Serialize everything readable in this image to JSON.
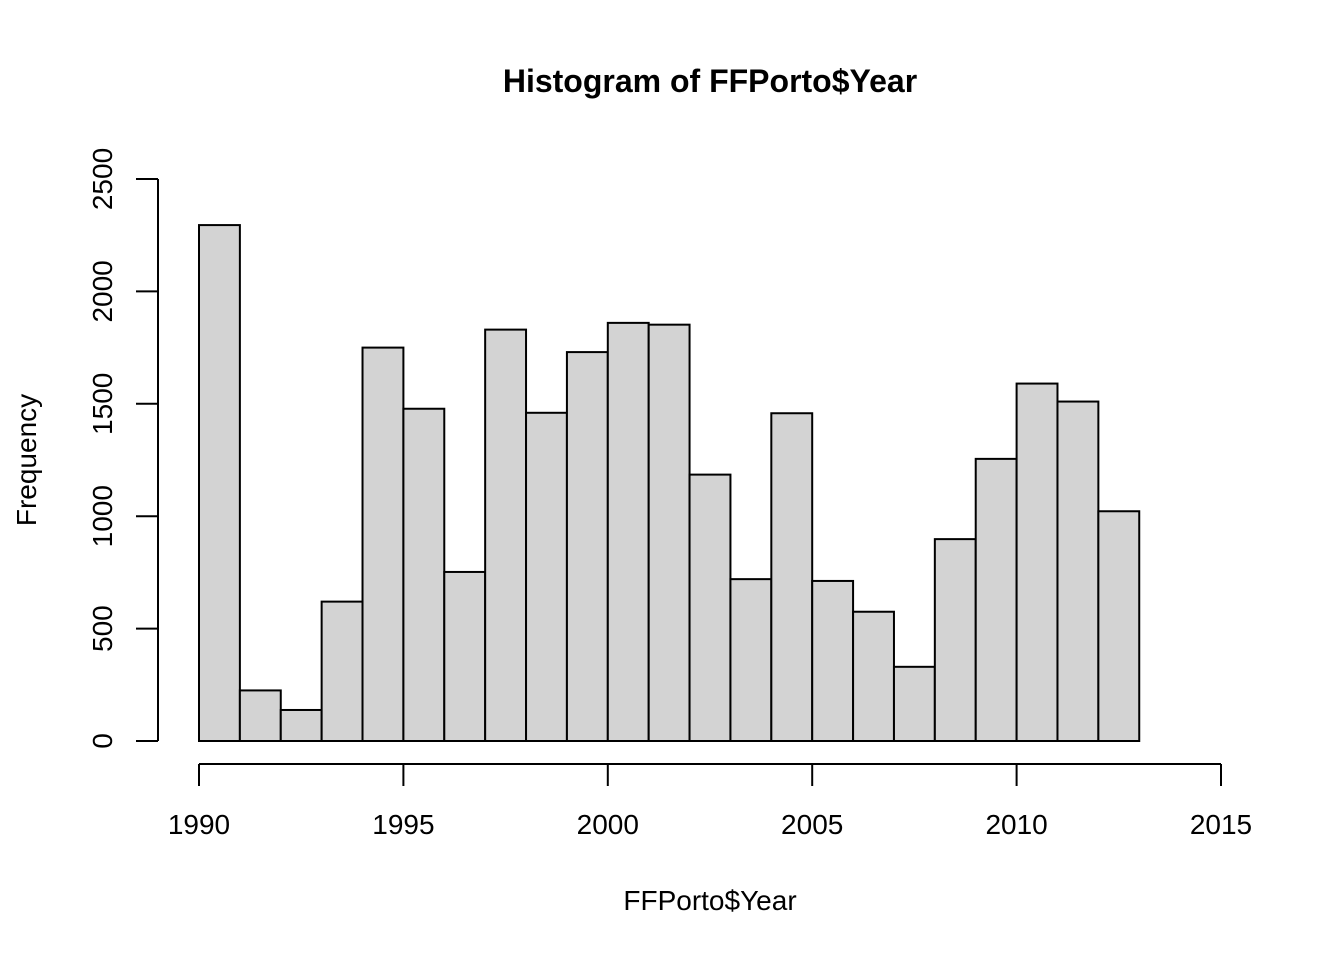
{
  "chart_data": {
    "type": "bar",
    "title": "Histogram of FFPorto$Year",
    "xlabel": "FFPorto$Year",
    "ylabel": "Frequency",
    "bin_edges": [
      1990,
      1991,
      1992,
      1993,
      1994,
      1995,
      1996,
      1997,
      1998,
      1999,
      2000,
      2001,
      2002,
      2003,
      2004,
      2005,
      2006,
      2007,
      2008,
      2009,
      2010,
      2011,
      2012,
      2013
    ],
    "values": [
      2295,
      225,
      138,
      620,
      1750,
      1478,
      752,
      1830,
      1460,
      1730,
      1860,
      1852,
      1185,
      720,
      1458,
      712,
      575,
      330,
      898,
      1255,
      1590,
      1510,
      1022
    ],
    "xlim": [
      1990,
      2015
    ],
    "ylim": [
      0,
      2500
    ],
    "x_ticks": [
      "1990",
      "1995",
      "2000",
      "2005",
      "2010",
      "2015"
    ],
    "y_ticks": [
      "0",
      "500",
      "1000",
      "1500",
      "2000",
      "2500"
    ],
    "grid": false,
    "bar_color": "#d3d3d3"
  }
}
